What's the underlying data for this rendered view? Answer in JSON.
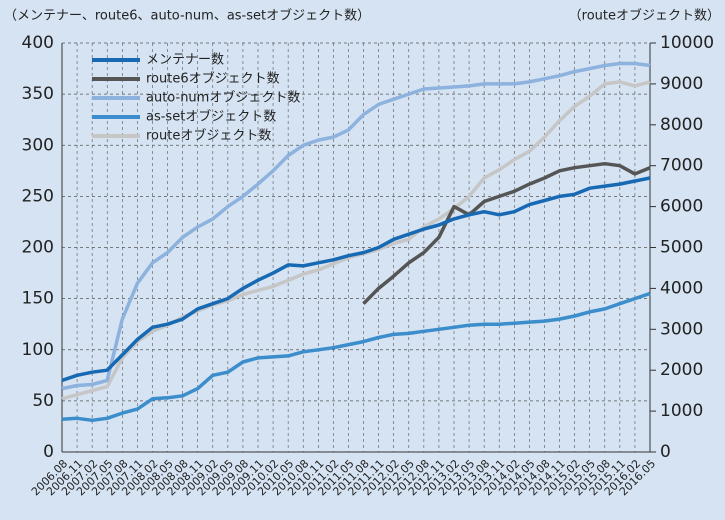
{
  "chart_data": {
    "type": "line",
    "left_label": "（メンテナー、route6、auto-num、as-setオブジェクト数）",
    "right_label": "（routeオブジェクト数）",
    "categories": [
      "2006.08",
      "2006.11",
      "2007.02",
      "2007.05",
      "2007.08",
      "2007.11",
      "2008.02",
      "2008.05",
      "2008.08",
      "2008.11",
      "2009.02",
      "2009.05",
      "2009.08",
      "2009.11",
      "2010.02",
      "2010.05",
      "2010.08",
      "2010.11",
      "2011.02",
      "2011.05",
      "2011.08",
      "2011.11",
      "2012.02",
      "2012.05",
      "2012.08",
      "2012.11",
      "2013.02",
      "2013.05",
      "2013.08",
      "2013.11",
      "2014.02",
      "2014.05",
      "2014.08",
      "2014.11",
      "2015.02",
      "2015.05",
      "2015.08",
      "2015.11",
      "2016.02",
      "2016.05"
    ],
    "ylim": [
      0,
      400
    ],
    "yticks": [
      0,
      50,
      100,
      150,
      200,
      250,
      300,
      350,
      400
    ],
    "y2lim": [
      0,
      10000
    ],
    "y2ticks": [
      0,
      1000,
      2000,
      3000,
      4000,
      5000,
      6000,
      7000,
      8000,
      9000,
      10000
    ],
    "grid": true,
    "legend": "upper left",
    "series": [
      {
        "name": "メンテナー数",
        "color": "#1769b3",
        "values": [
          70,
          75,
          78,
          80,
          95,
          110,
          122,
          125,
          130,
          140,
          145,
          150,
          160,
          168,
          175,
          183,
          182,
          185,
          188,
          192,
          195,
          200,
          208,
          213,
          218,
          222,
          228,
          232,
          235,
          232,
          235,
          242,
          246,
          250,
          252,
          258,
          260,
          262,
          265,
          268
        ]
      },
      {
        "name": "route6オブジェクト数",
        "color": "#555555",
        "values": [
          null,
          null,
          null,
          null,
          null,
          null,
          null,
          null,
          null,
          null,
          null,
          null,
          null,
          null,
          null,
          null,
          null,
          null,
          null,
          null,
          145,
          160,
          172,
          185,
          195,
          210,
          240,
          232,
          245,
          250,
          255,
          262,
          268,
          275,
          278,
          280,
          282,
          280,
          272,
          278
        ]
      },
      {
        "name": "auto-numオブジェクト数",
        "color": "#8db2de",
        "values": [
          62,
          65,
          66,
          70,
          130,
          165,
          185,
          195,
          210,
          220,
          228,
          240,
          250,
          262,
          275,
          290,
          300,
          305,
          308,
          315,
          330,
          340,
          345,
          350,
          355,
          356,
          357,
          358,
          360,
          360,
          360,
          362,
          365,
          368,
          372,
          375,
          378,
          380,
          380,
          378
        ]
      },
      {
        "name": "as-setオブジェクト数",
        "color": "#3b8dcb",
        "values": [
          32,
          33,
          31,
          33,
          38,
          42,
          52,
          53,
          55,
          62,
          75,
          78,
          88,
          92,
          93,
          94,
          98,
          100,
          102,
          105,
          108,
          112,
          115,
          116,
          118,
          120,
          122,
          124,
          125,
          125,
          126,
          127,
          128,
          130,
          133,
          137,
          140,
          145,
          150,
          155
        ]
      },
      {
        "name": "routeオブジェクト数",
        "color": "#c6c6c6",
        "axis": "y2",
        "values": [
          1300,
          1400,
          1500,
          1600,
          2300,
          2700,
          2950,
          3100,
          3300,
          3450,
          3600,
          3700,
          3850,
          3950,
          4050,
          4200,
          4350,
          4450,
          4600,
          4750,
          4850,
          4950,
          5100,
          5200,
          5500,
          5700,
          5950,
          6250,
          6700,
          6900,
          7150,
          7350,
          7700,
          8100,
          8450,
          8700,
          9000,
          9050,
          8950,
          9050
        ]
      }
    ]
  }
}
